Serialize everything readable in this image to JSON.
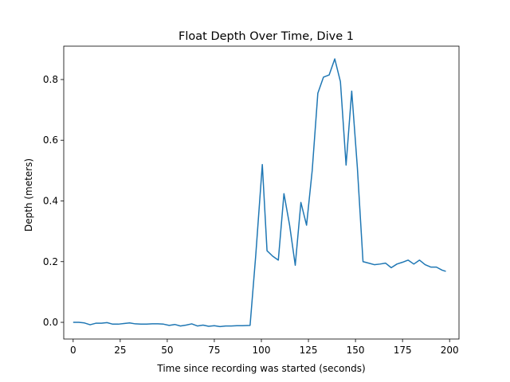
{
  "chart_data": {
    "type": "line",
    "title": "Float Depth Over Time, Dive 1",
    "xlabel": "Time since recording was started (seconds)",
    "ylabel": "Depth (meters)",
    "xlim": [
      -5,
      205
    ],
    "ylim": [
      -0.055,
      0.91
    ],
    "xticks": [
      0,
      25,
      50,
      75,
      100,
      125,
      150,
      175,
      200
    ],
    "yticks": [
      0.0,
      0.2,
      0.4,
      0.6,
      0.8
    ],
    "ytick_labels": [
      "0.0",
      "0.2",
      "0.4",
      "0.6",
      "0.8"
    ],
    "grid": false,
    "color": "#1f77b4",
    "series": [
      {
        "x": [
          0,
          3,
          6,
          9,
          12,
          15,
          18,
          21,
          24,
          27,
          30,
          33,
          36,
          39,
          42,
          45,
          48,
          51,
          54,
          57,
          60,
          63,
          66,
          69,
          72,
          75,
          78,
          81,
          84,
          87,
          90,
          94,
          97,
          100.5,
          103,
          106,
          109,
          112,
          115,
          118,
          121,
          124,
          127,
          130,
          133,
          136,
          139,
          142,
          145,
          148,
          151,
          154,
          157,
          160,
          163,
          166,
          169,
          172,
          175,
          178,
          181,
          184,
          187,
          190,
          193,
          196,
          198
        ],
        "y": [
          0.0,
          0.0,
          -0.002,
          -0.008,
          -0.003,
          -0.003,
          -0.001,
          -0.006,
          -0.006,
          -0.004,
          -0.002,
          -0.005,
          -0.006,
          -0.006,
          -0.005,
          -0.005,
          -0.006,
          -0.01,
          -0.007,
          -0.012,
          -0.009,
          -0.005,
          -0.012,
          -0.009,
          -0.013,
          -0.011,
          -0.014,
          -0.012,
          -0.012,
          -0.011,
          -0.011,
          -0.01,
          0.22,
          0.52,
          0.236,
          0.218,
          0.205,
          0.424,
          0.32,
          0.188,
          0.395,
          0.32,
          0.5,
          0.755,
          0.808,
          0.815,
          0.868,
          0.793,
          0.518,
          0.762,
          0.51,
          0.2,
          0.195,
          0.19,
          0.192,
          0.195,
          0.18,
          0.192,
          0.198,
          0.205,
          0.192,
          0.205,
          0.19,
          0.182,
          0.182,
          0.172,
          0.168
        ]
      }
    ]
  }
}
